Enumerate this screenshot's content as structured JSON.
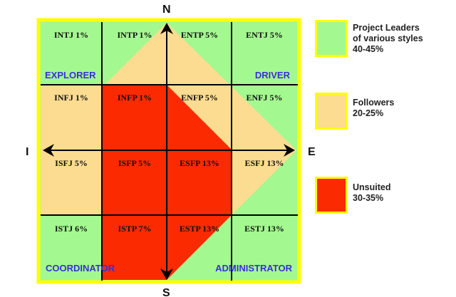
{
  "axes": {
    "north": "N",
    "south": "S",
    "west": "I",
    "east": "E"
  },
  "cells": [
    [
      "INTJ 1%",
      "INTP 1%",
      "ENTP 5%",
      "ENTJ 5%"
    ],
    [
      "INFJ 1%",
      "INFP 1%",
      "ENFP 5%",
      "ENFJ 5%"
    ],
    [
      "ISFJ 5%",
      "ISFP 5%",
      "ESFP 13%",
      "ESFJ 13%"
    ],
    [
      "ISTJ 6%",
      "ISTP 7%",
      "ESTP 13%",
      "ESTJ 13%"
    ]
  ],
  "roles": {
    "top_left": "EXPLORER",
    "top_right": "DRIVER",
    "bottom_left": "COORDINATOR",
    "bottom_right": "ADMINISTRATOR"
  },
  "legend": [
    {
      "line1": "Project Leaders",
      "line2": "of various styles",
      "line3": "40-45%",
      "color": "#a3f98f"
    },
    {
      "line1": "Followers",
      "line2": "20-25%",
      "color": "#fbdc90"
    },
    {
      "line1": "Unsuited",
      "line2": "30-35%",
      "color": "#fb2a00"
    }
  ]
}
